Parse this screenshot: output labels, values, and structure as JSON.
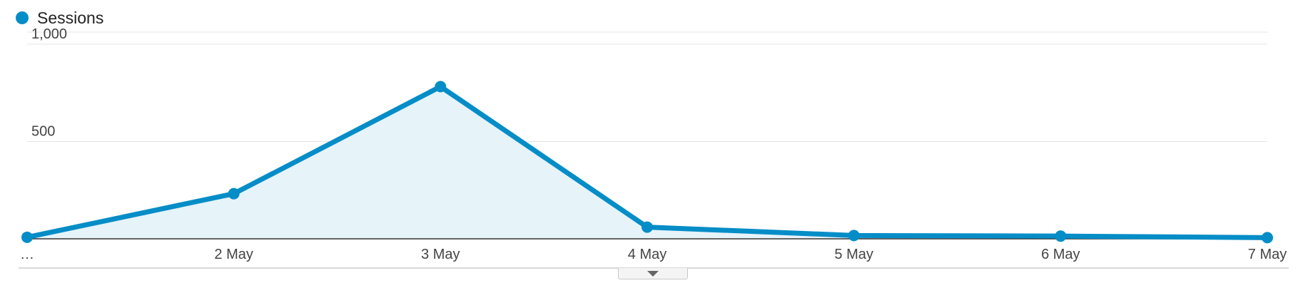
{
  "colors": {
    "series": "#058dc7",
    "area": "#e6f3f9",
    "grid": "#e4e4e4",
    "axis": "#333333"
  },
  "legend": {
    "label": "Sessions"
  },
  "chart_data": {
    "type": "area",
    "categories": [
      "…",
      "2 May",
      "3 May",
      "4 May",
      "5 May",
      "6 May",
      "7 May"
    ],
    "series": [
      {
        "name": "Sessions",
        "values": [
          8,
          232,
          782,
          60,
          17,
          14,
          6
        ]
      }
    ],
    "ylim": [
      0,
      1000
    ],
    "yticks": [
      {
        "value": 1000,
        "label": "1,000"
      },
      {
        "value": 500,
        "label": "500"
      }
    ],
    "grid": true,
    "legend_position": "top-left"
  },
  "controls": {
    "expander_icon": "chevron-down-icon"
  }
}
